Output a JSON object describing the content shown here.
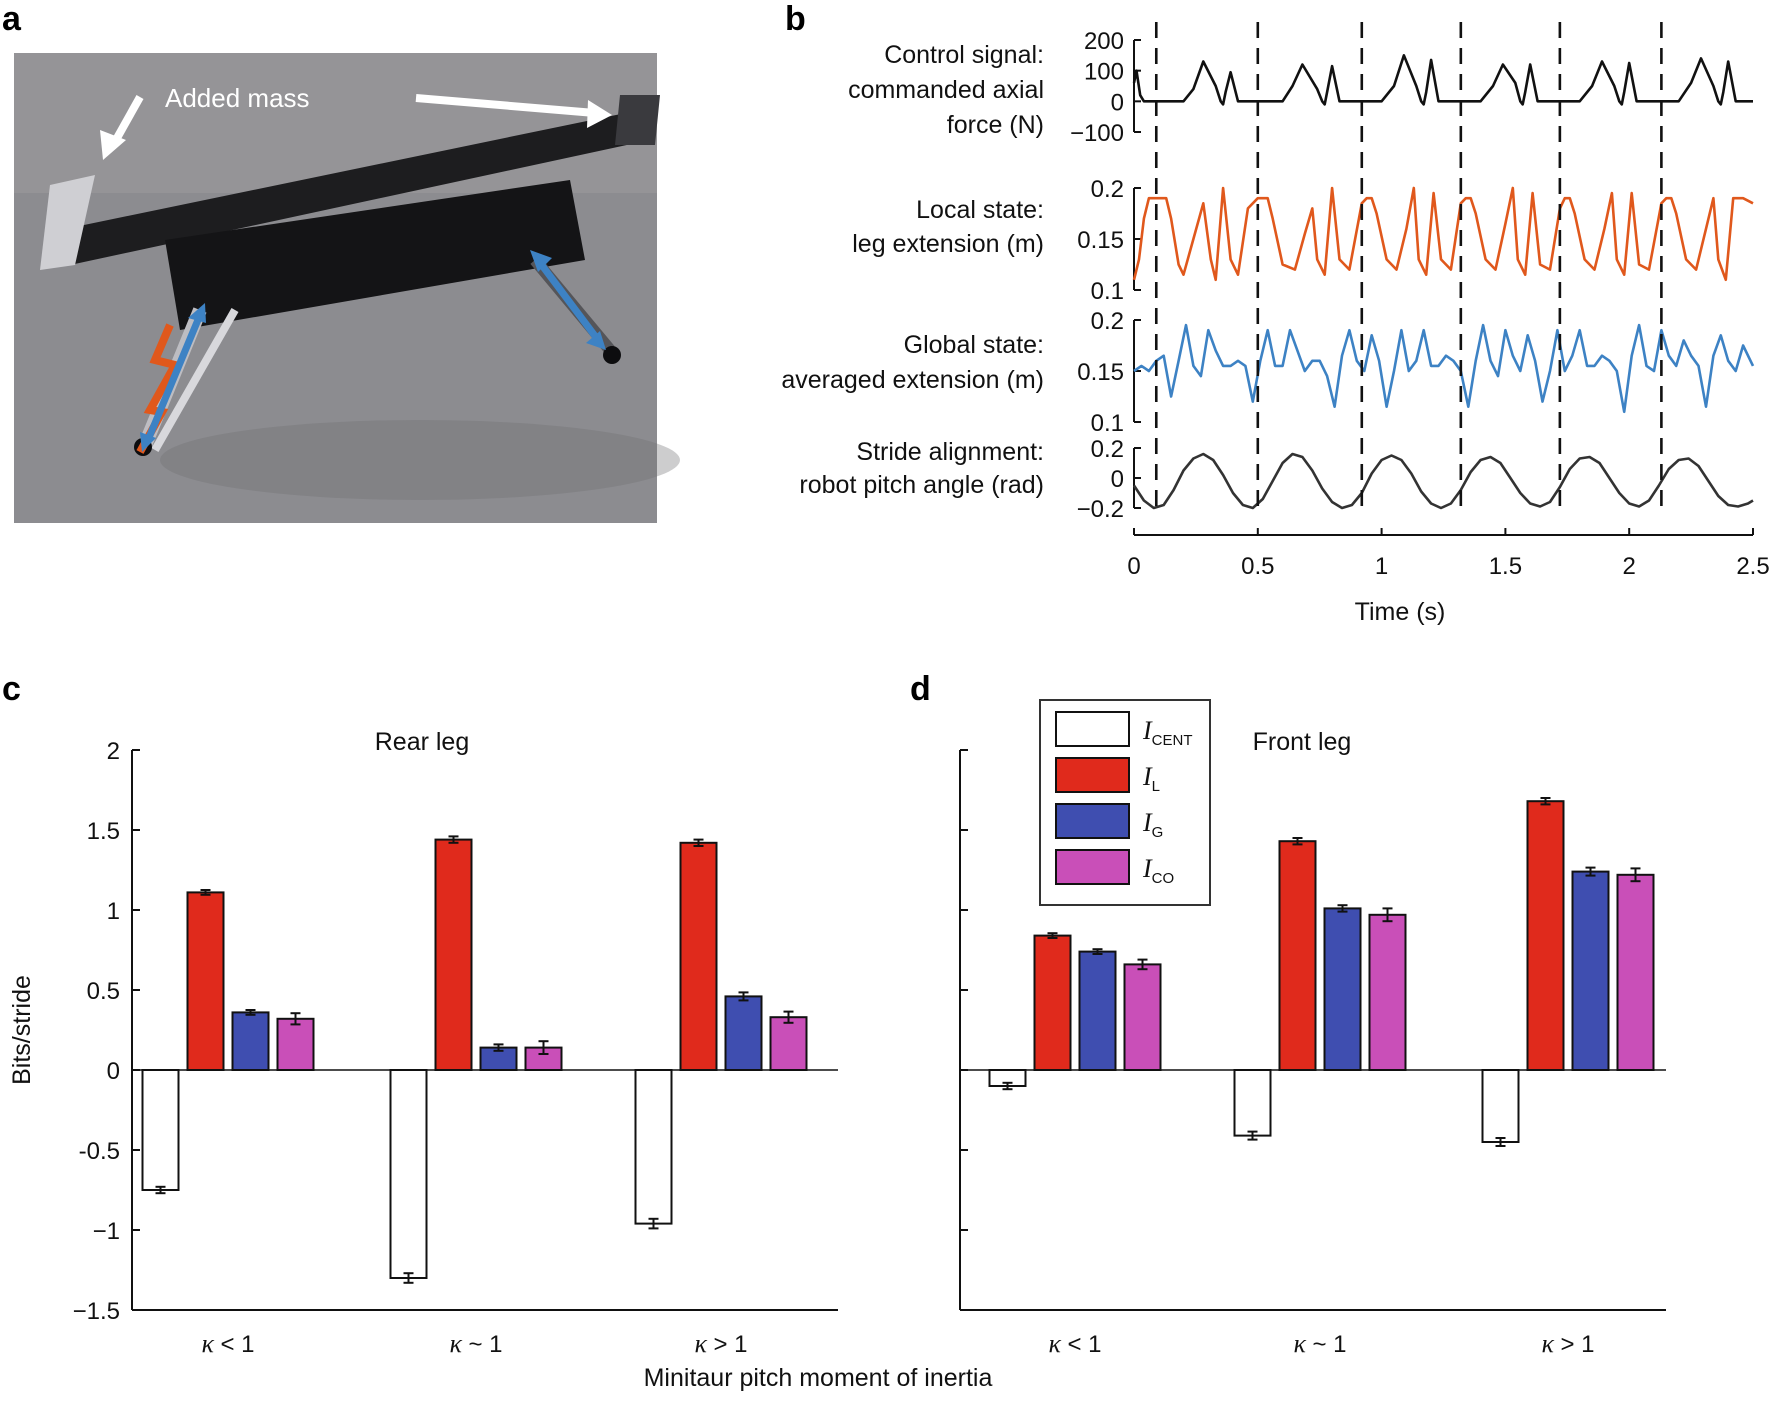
{
  "panel_labels": [
    "a",
    "b",
    "c",
    "d"
  ],
  "colors": {
    "black_trace": "#111111",
    "orange_trace": "#e0581c",
    "blue_trace": "#3d82c4",
    "grey_trace": "#333333",
    "I_CENT": "#ffffff",
    "I_L": "#e02a1c",
    "I_G": "#3f4eb0",
    "I_CO": "#c94fb8"
  },
  "photo": {
    "annotation": "Added mass",
    "icons": [
      "robot-photo",
      "arrow-icon"
    ]
  },
  "chart_data": [
    {
      "id": "b",
      "type": "line",
      "xlabel": "Time (s)",
      "xlim": [
        0,
        2.5
      ],
      "xticks": [
        0,
        0.5,
        1,
        1.5,
        2,
        2.5
      ],
      "xtick_labels": [
        "0",
        "0.5",
        "1",
        "1.5",
        "2",
        "2.5"
      ],
      "stride_markers": [
        0.09,
        0.5,
        0.92,
        1.32,
        1.72,
        2.13
      ],
      "subplots": [
        {
          "label_lines": [
            "Control signal:",
            "commanded axial",
            "force (N)"
          ],
          "ylim": [
            -100,
            200
          ],
          "yticks": [
            200,
            100,
            0,
            -100
          ],
          "ytick_labels": [
            "200",
            "100",
            "0",
            "−100"
          ],
          "color": "#111111",
          "x": [
            0,
            0.01,
            0.025,
            0.04,
            0.06,
            0.09,
            0.1,
            0.12,
            0.2,
            0.24,
            0.28,
            0.33,
            0.35,
            0.36,
            0.37,
            0.39,
            0.42,
            0.5,
            0.6,
            0.64,
            0.68,
            0.74,
            0.76,
            0.77,
            0.78,
            0.8,
            0.83,
            0.92,
            1.0,
            1.05,
            1.09,
            1.14,
            1.16,
            1.17,
            1.18,
            1.2,
            1.23,
            1.32,
            1.4,
            1.45,
            1.49,
            1.54,
            1.56,
            1.57,
            1.58,
            1.6,
            1.63,
            1.72,
            1.8,
            1.85,
            1.89,
            1.94,
            1.96,
            1.97,
            1.98,
            2.0,
            2.03,
            2.13,
            2.2,
            2.25,
            2.29,
            2.34,
            2.36,
            2.37,
            2.38,
            2.4,
            2.43,
            2.5
          ],
          "y": [
            60,
            100,
            20,
            0,
            0,
            0,
            0,
            0,
            0,
            40,
            130,
            50,
            0,
            -10,
            30,
            95,
            0,
            0,
            0,
            50,
            120,
            40,
            0,
            -10,
            30,
            115,
            0,
            0,
            0,
            50,
            150,
            50,
            0,
            -10,
            30,
            135,
            0,
            0,
            0,
            50,
            120,
            60,
            0,
            -10,
            30,
            120,
            0,
            0,
            0,
            50,
            130,
            50,
            0,
            -10,
            30,
            125,
            0,
            0,
            0,
            60,
            140,
            50,
            0,
            -10,
            30,
            130,
            0,
            0
          ]
        },
        {
          "label_lines": [
            "Local state:",
            "leg extension (m)"
          ],
          "ylim": [
            0.1,
            0.2
          ],
          "yticks": [
            0.2,
            0.15,
            0.1
          ],
          "ytick_labels": [
            "0.2",
            "0.15",
            "0.1"
          ],
          "color": "#e0581c",
          "x": [
            0,
            0.02,
            0.04,
            0.06,
            0.09,
            0.11,
            0.13,
            0.15,
            0.18,
            0.2,
            0.24,
            0.28,
            0.31,
            0.33,
            0.36,
            0.39,
            0.42,
            0.46,
            0.5,
            0.52,
            0.54,
            0.56,
            0.6,
            0.65,
            0.69,
            0.72,
            0.74,
            0.77,
            0.8,
            0.83,
            0.87,
            0.92,
            0.94,
            0.96,
            0.98,
            1.02,
            1.06,
            1.1,
            1.13,
            1.15,
            1.18,
            1.21,
            1.24,
            1.28,
            1.32,
            1.34,
            1.36,
            1.38,
            1.42,
            1.46,
            1.5,
            1.53,
            1.55,
            1.58,
            1.61,
            1.64,
            1.68,
            1.72,
            1.74,
            1.76,
            1.78,
            1.82,
            1.86,
            1.9,
            1.93,
            1.95,
            1.98,
            2.01,
            2.04,
            2.08,
            2.13,
            2.15,
            2.17,
            2.19,
            2.23,
            2.27,
            2.31,
            2.34,
            2.36,
            2.39,
            2.42,
            2.46,
            2.5
          ],
          "y": [
            0.11,
            0.13,
            0.17,
            0.19,
            0.19,
            0.19,
            0.19,
            0.17,
            0.125,
            0.115,
            0.15,
            0.185,
            0.13,
            0.11,
            0.2,
            0.13,
            0.115,
            0.18,
            0.19,
            0.19,
            0.19,
            0.17,
            0.125,
            0.12,
            0.155,
            0.18,
            0.13,
            0.115,
            0.2,
            0.13,
            0.12,
            0.185,
            0.19,
            0.19,
            0.175,
            0.13,
            0.12,
            0.16,
            0.2,
            0.13,
            0.115,
            0.195,
            0.13,
            0.12,
            0.185,
            0.19,
            0.19,
            0.175,
            0.13,
            0.12,
            0.165,
            0.2,
            0.13,
            0.115,
            0.195,
            0.125,
            0.12,
            0.18,
            0.19,
            0.19,
            0.175,
            0.13,
            0.12,
            0.16,
            0.195,
            0.13,
            0.115,
            0.195,
            0.125,
            0.12,
            0.185,
            0.19,
            0.19,
            0.175,
            0.13,
            0.12,
            0.16,
            0.19,
            0.13,
            0.11,
            0.19,
            0.19,
            0.185
          ]
        },
        {
          "label_lines": [
            "Global state:",
            "averaged extension (m)"
          ],
          "ylim": [
            0.1,
            0.2
          ],
          "yticks": [
            0.2,
            0.15,
            0.1
          ],
          "ytick_labels": [
            "0.2",
            "0.15",
            "0.1"
          ],
          "color": "#3d82c4",
          "x": [
            0,
            0.03,
            0.06,
            0.09,
            0.12,
            0.15,
            0.18,
            0.21,
            0.24,
            0.27,
            0.3,
            0.33,
            0.36,
            0.39,
            0.42,
            0.45,
            0.48,
            0.51,
            0.54,
            0.57,
            0.6,
            0.63,
            0.66,
            0.69,
            0.72,
            0.75,
            0.78,
            0.81,
            0.84,
            0.87,
            0.9,
            0.93,
            0.96,
            0.99,
            1.02,
            1.05,
            1.08,
            1.11,
            1.14,
            1.17,
            1.2,
            1.23,
            1.26,
            1.29,
            1.32,
            1.35,
            1.38,
            1.41,
            1.44,
            1.47,
            1.5,
            1.53,
            1.56,
            1.59,
            1.62,
            1.65,
            1.68,
            1.71,
            1.74,
            1.77,
            1.8,
            1.83,
            1.86,
            1.89,
            1.92,
            1.95,
            1.98,
            2.01,
            2.04,
            2.07,
            2.1,
            2.13,
            2.16,
            2.19,
            2.22,
            2.25,
            2.28,
            2.31,
            2.34,
            2.37,
            2.4,
            2.43,
            2.46,
            2.5
          ],
          "y": [
            0.15,
            0.155,
            0.15,
            0.16,
            0.165,
            0.125,
            0.16,
            0.195,
            0.155,
            0.145,
            0.19,
            0.17,
            0.155,
            0.155,
            0.16,
            0.155,
            0.12,
            0.16,
            0.19,
            0.155,
            0.155,
            0.19,
            0.17,
            0.15,
            0.16,
            0.16,
            0.145,
            0.115,
            0.165,
            0.19,
            0.16,
            0.15,
            0.185,
            0.16,
            0.115,
            0.15,
            0.19,
            0.15,
            0.16,
            0.19,
            0.155,
            0.155,
            0.165,
            0.16,
            0.15,
            0.115,
            0.16,
            0.195,
            0.16,
            0.145,
            0.19,
            0.165,
            0.15,
            0.185,
            0.16,
            0.12,
            0.15,
            0.19,
            0.15,
            0.165,
            0.19,
            0.155,
            0.155,
            0.165,
            0.16,
            0.15,
            0.11,
            0.165,
            0.195,
            0.155,
            0.15,
            0.19,
            0.165,
            0.155,
            0.18,
            0.165,
            0.155,
            0.115,
            0.165,
            0.185,
            0.16,
            0.15,
            0.175,
            0.155
          ]
        },
        {
          "label_lines": [
            "Stride alignment:",
            "robot pitch angle (rad)"
          ],
          "ylim": [
            -0.2,
            0.2
          ],
          "yticks": [
            0.2,
            0,
            -0.2
          ],
          "ytick_labels": [
            "0.2",
            "0",
            "−0.2"
          ],
          "color": "#333333",
          "x": [
            0,
            0.04,
            0.08,
            0.12,
            0.16,
            0.2,
            0.24,
            0.28,
            0.32,
            0.36,
            0.4,
            0.44,
            0.48,
            0.52,
            0.56,
            0.6,
            0.64,
            0.68,
            0.72,
            0.76,
            0.8,
            0.84,
            0.88,
            0.92,
            0.96,
            1.0,
            1.04,
            1.08,
            1.12,
            1.16,
            1.2,
            1.24,
            1.28,
            1.32,
            1.36,
            1.4,
            1.44,
            1.48,
            1.52,
            1.56,
            1.6,
            1.64,
            1.68,
            1.72,
            1.76,
            1.8,
            1.84,
            1.88,
            1.92,
            1.96,
            2.0,
            2.04,
            2.08,
            2.12,
            2.16,
            2.2,
            2.24,
            2.28,
            2.32,
            2.36,
            2.4,
            2.44,
            2.48,
            2.5
          ],
          "y": [
            -0.05,
            -0.15,
            -0.2,
            -0.18,
            -0.08,
            0.05,
            0.13,
            0.16,
            0.12,
            0.02,
            -0.1,
            -0.18,
            -0.2,
            -0.14,
            -0.02,
            0.1,
            0.16,
            0.14,
            0.05,
            -0.07,
            -0.16,
            -0.2,
            -0.18,
            -0.1,
            0.03,
            0.12,
            0.15,
            0.12,
            0.03,
            -0.09,
            -0.17,
            -0.2,
            -0.17,
            -0.08,
            0.04,
            0.12,
            0.14,
            0.1,
            0.0,
            -0.1,
            -0.17,
            -0.19,
            -0.16,
            -0.06,
            0.06,
            0.13,
            0.14,
            0.1,
            0.0,
            -0.1,
            -0.17,
            -0.19,
            -0.15,
            -0.05,
            0.06,
            0.12,
            0.13,
            0.08,
            -0.02,
            -0.12,
            -0.18,
            -0.19,
            -0.17,
            -0.15
          ]
        }
      ]
    },
    {
      "id": "c",
      "type": "bar",
      "title": "Rear leg",
      "ylabel": "Bits/stride",
      "ylim": [
        -1.5,
        2
      ],
      "yticks": [
        2,
        1.5,
        1,
        0.5,
        0,
        -0.5,
        -1,
        -1.5
      ],
      "ytick_labels": [
        "2",
        "1.5",
        "1",
        "0.5",
        "0",
        "-0.5",
        "−1",
        "−1.5"
      ],
      "categories": [
        "< 1",
        "~ 1",
        "> 1"
      ],
      "category_symbol": "κ",
      "series": [
        {
          "name": "CENT",
          "values": [
            -0.75,
            -1.3,
            -0.96
          ],
          "errors": [
            0.02,
            0.03,
            0.03
          ]
        },
        {
          "name": "L",
          "values": [
            1.11,
            1.44,
            1.42
          ],
          "errors": [
            0.015,
            0.02,
            0.02
          ]
        },
        {
          "name": "G",
          "values": [
            0.36,
            0.14,
            0.46
          ],
          "errors": [
            0.015,
            0.02,
            0.025
          ]
        },
        {
          "name": "CO",
          "values": [
            0.32,
            0.14,
            0.33
          ],
          "errors": [
            0.035,
            0.04,
            0.035
          ]
        }
      ]
    },
    {
      "id": "d",
      "type": "bar",
      "title": "Front leg",
      "ylim": [
        -1.5,
        2
      ],
      "yticks": [
        2,
        1.5,
        1,
        0.5,
        0,
        -0.5,
        -1,
        -1.5
      ],
      "categories": [
        "< 1",
        "~ 1",
        "> 1"
      ],
      "category_symbol": "κ",
      "legend_position": "top-left",
      "legend_symbol": "I",
      "series": [
        {
          "name": "CENT",
          "values": [
            -0.1,
            -0.41,
            -0.45
          ],
          "errors": [
            0.02,
            0.025,
            0.025
          ]
        },
        {
          "name": "L",
          "values": [
            0.84,
            1.43,
            1.68
          ],
          "errors": [
            0.015,
            0.02,
            0.02
          ]
        },
        {
          "name": "G",
          "values": [
            0.74,
            1.01,
            1.24
          ],
          "errors": [
            0.015,
            0.02,
            0.025
          ]
        },
        {
          "name": "CO",
          "values": [
            0.66,
            0.97,
            1.22
          ],
          "errors": [
            0.03,
            0.04,
            0.04
          ]
        }
      ]
    }
  ],
  "shared_xlabel": "Minitaur pitch moment of inertia"
}
